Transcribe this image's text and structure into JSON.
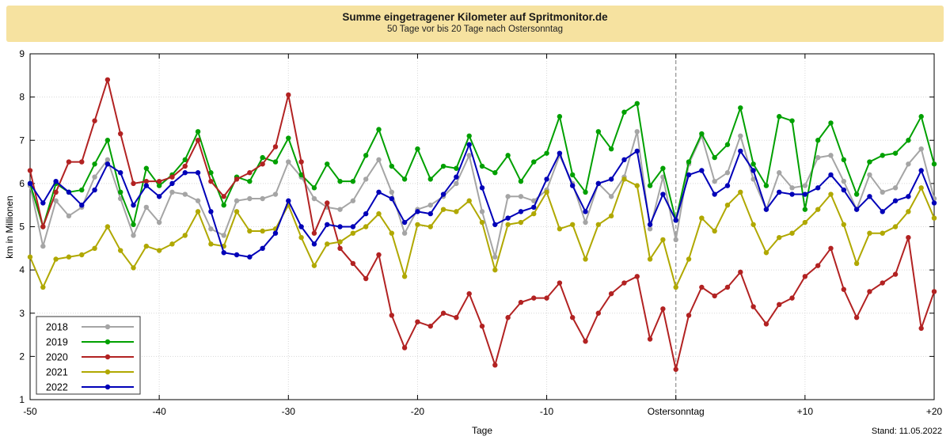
{
  "header": {
    "title": "Summe eingetragener Kilometer auf Spritmonitor.de",
    "subtitle": "50 Tage vor bis 20 Tage nach Ostersonntag"
  },
  "footer": {
    "stand": "Stand: 11.05.2022"
  },
  "axes": {
    "ylabel": "km in Millionen",
    "xlabel": "Tage",
    "y_ticks": [
      1,
      2,
      3,
      4,
      5,
      6,
      7,
      8,
      9
    ],
    "x_ticks": [
      {
        "day": -50,
        "label": "-50"
      },
      {
        "day": -40,
        "label": "-40"
      },
      {
        "day": -30,
        "label": "-30"
      },
      {
        "day": -20,
        "label": "-20"
      },
      {
        "day": -10,
        "label": "-10"
      },
      {
        "day": 0,
        "label": "Ostersonntag"
      },
      {
        "day": 10,
        "label": "+10"
      },
      {
        "day": 20,
        "label": "+20"
      }
    ]
  },
  "chart_data": {
    "type": "line",
    "title": "Summe eingetragener Kilometer auf Spritmonitor.de",
    "subtitle": "50 Tage vor bis 20 Tage nach Ostersonntag",
    "xlabel": "Tage",
    "ylabel": "km in Millionen",
    "xlim": [
      -50,
      20
    ],
    "ylim": [
      1,
      9
    ],
    "x_start": -50,
    "x_step": 1,
    "grid": true,
    "grid_days": [
      -40,
      -30,
      -20,
      -10,
      10
    ],
    "easter_line_day": 0,
    "legend_position": "bottom-left",
    "colors": {
      "grid": "#d8d8d8",
      "easter_line": "#909090",
      "border": "#000000"
    },
    "series": [
      {
        "name": "2018",
        "color": "#a5a5a5",
        "values": [
          5.95,
          4.55,
          5.6,
          5.25,
          5.45,
          6.15,
          6.55,
          5.65,
          4.8,
          5.45,
          5.1,
          5.8,
          5.75,
          5.6,
          4.95,
          4.8,
          5.6,
          5.65,
          5.65,
          5.75,
          6.5,
          6.15,
          5.65,
          5.45,
          5.4,
          5.6,
          6.1,
          6.55,
          5.8,
          4.85,
          5.4,
          5.5,
          5.7,
          6.0,
          6.65,
          5.35,
          4.3,
          5.7,
          5.7,
          5.6,
          5.85,
          6.65,
          6.0,
          5.1,
          6.0,
          5.7,
          6.15,
          7.2,
          4.95,
          6.15,
          4.7,
          6.45,
          7.1,
          6.05,
          6.25,
          7.1,
          6.1,
          5.4,
          6.25,
          5.9,
          5.95,
          6.6,
          6.65,
          6.05,
          5.4,
          6.2,
          5.8,
          5.9,
          6.45,
          6.8,
          5.65
        ]
      },
      {
        "name": "2019",
        "color": "#00a000",
        "values": [
          6.0,
          5.0,
          6.0,
          5.8,
          5.85,
          6.45,
          7.0,
          5.8,
          5.05,
          6.35,
          5.95,
          6.2,
          6.55,
          7.2,
          6.25,
          5.5,
          6.15,
          6.05,
          6.6,
          6.5,
          7.05,
          6.2,
          5.9,
          6.45,
          6.05,
          6.05,
          6.65,
          7.25,
          6.4,
          6.1,
          6.8,
          6.1,
          6.4,
          6.35,
          7.1,
          6.4,
          6.25,
          6.65,
          6.05,
          6.5,
          6.7,
          7.55,
          6.2,
          5.8,
          7.2,
          6.8,
          7.65,
          7.85,
          5.95,
          6.35,
          5.15,
          6.5,
          7.15,
          6.6,
          6.9,
          7.75,
          6.45,
          5.95,
          7.55,
          7.45,
          5.4,
          7.0,
          7.4,
          6.55,
          5.75,
          6.5,
          6.65,
          6.7,
          7.0,
          7.55,
          6.45
        ]
      },
      {
        "name": "2020",
        "color": "#b22222",
        "values": [
          6.3,
          5.0,
          5.8,
          6.5,
          6.5,
          7.45,
          8.4,
          7.15,
          6.0,
          6.05,
          6.05,
          6.15,
          6.4,
          7.0,
          6.05,
          5.7,
          6.1,
          6.25,
          6.45,
          6.85,
          8.05,
          6.5,
          4.85,
          5.55,
          4.5,
          4.15,
          3.8,
          4.35,
          2.95,
          2.2,
          2.8,
          2.7,
          3.0,
          2.9,
          3.45,
          2.7,
          1.8,
          2.9,
          3.25,
          3.35,
          3.35,
          3.7,
          2.9,
          2.35,
          3.0,
          3.45,
          3.7,
          3.85,
          2.4,
          3.1,
          1.7,
          2.95,
          3.6,
          3.4,
          3.6,
          3.95,
          3.15,
          2.75,
          3.2,
          3.35,
          3.85,
          4.1,
          4.5,
          3.55,
          2.9,
          3.5,
          3.7,
          3.9,
          4.75,
          2.65,
          3.5
        ]
      },
      {
        "name": "2021",
        "color": "#b0a800",
        "values": [
          4.3,
          3.6,
          4.25,
          4.3,
          4.35,
          4.5,
          5.0,
          4.45,
          4.05,
          4.55,
          4.45,
          4.6,
          4.8,
          5.35,
          4.6,
          4.55,
          5.35,
          4.9,
          4.9,
          4.95,
          5.5,
          4.75,
          4.1,
          4.6,
          4.65,
          4.85,
          5.0,
          5.3,
          4.85,
          3.85,
          5.05,
          5.0,
          5.4,
          5.35,
          5.6,
          5.1,
          4.0,
          5.05,
          5.1,
          5.3,
          5.8,
          4.95,
          5.05,
          4.25,
          5.05,
          5.25,
          6.1,
          5.95,
          4.25,
          4.7,
          3.6,
          4.25,
          5.2,
          4.9,
          5.5,
          5.8,
          5.05,
          4.4,
          4.75,
          4.85,
          5.1,
          5.4,
          5.75,
          5.05,
          4.15,
          4.85,
          4.85,
          5.0,
          5.35,
          5.9,
          5.2
        ]
      },
      {
        "name": "2022",
        "color": "#0000b8",
        "values": [
          6.0,
          5.55,
          6.05,
          5.8,
          5.5,
          5.85,
          6.45,
          6.25,
          5.5,
          5.95,
          5.7,
          6.0,
          6.25,
          6.25,
          5.35,
          4.4,
          4.35,
          4.3,
          4.5,
          4.85,
          5.6,
          5.0,
          4.6,
          5.05,
          5.0,
          5.0,
          5.3,
          5.8,
          5.65,
          5.1,
          5.35,
          5.3,
          5.75,
          6.15,
          6.9,
          5.9,
          5.05,
          5.2,
          5.35,
          5.45,
          6.1,
          6.7,
          5.95,
          5.35,
          6.0,
          6.1,
          6.55,
          6.75,
          5.05,
          5.75,
          5.15,
          6.2,
          6.3,
          5.75,
          5.95,
          6.75,
          6.3,
          5.4,
          5.8,
          5.75,
          5.75,
          5.9,
          6.2,
          5.85,
          5.4,
          5.7,
          5.35,
          5.6,
          5.7,
          6.3,
          5.55
        ]
      }
    ]
  }
}
